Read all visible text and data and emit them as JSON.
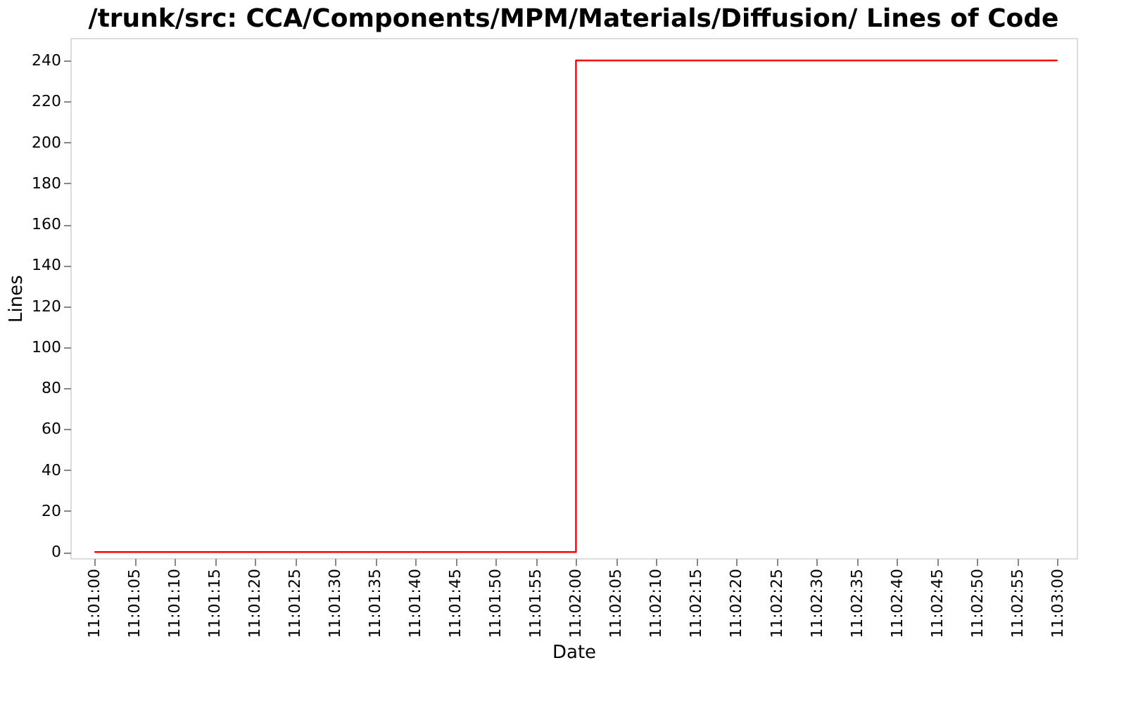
{
  "chart_data": {
    "type": "step",
    "title": "/trunk/src: CCA/Components/MPM/Materials/Diffusion/ Lines of Code",
    "xlabel": "Date",
    "ylabel": "Lines",
    "x": [
      11.016667,
      11.033333,
      11.05
    ],
    "series": [
      {
        "color": "#ff0000",
        "values": [
          0,
          240,
          240
        ]
      }
    ],
    "xlim": [
      11.015833,
      11.050667
    ],
    "ylim": [
      -3,
      251
    ],
    "xticks": [
      {
        "value": 11.016667,
        "label": "11:01:00"
      },
      {
        "value": 11.018056,
        "label": "11:01:05"
      },
      {
        "value": 11.019444,
        "label": "11:01:10"
      },
      {
        "value": 11.020833,
        "label": "11:01:15"
      },
      {
        "value": 11.022222,
        "label": "11:01:20"
      },
      {
        "value": 11.023611,
        "label": "11:01:25"
      },
      {
        "value": 11.025,
        "label": "11:01:30"
      },
      {
        "value": 11.026389,
        "label": "11:01:35"
      },
      {
        "value": 11.027778,
        "label": "11:01:40"
      },
      {
        "value": 11.029167,
        "label": "11:01:45"
      },
      {
        "value": 11.030556,
        "label": "11:01:50"
      },
      {
        "value": 11.031944,
        "label": "11:01:55"
      },
      {
        "value": 11.033333,
        "label": "11:02:00"
      },
      {
        "value": 11.034722,
        "label": "11:02:05"
      },
      {
        "value": 11.036111,
        "label": "11:02:10"
      },
      {
        "value": 11.0375,
        "label": "11:02:15"
      },
      {
        "value": 11.038889,
        "label": "11:02:20"
      },
      {
        "value": 11.040278,
        "label": "11:02:25"
      },
      {
        "value": 11.041667,
        "label": "11:02:30"
      },
      {
        "value": 11.043056,
        "label": "11:02:35"
      },
      {
        "value": 11.044444,
        "label": "11:02:40"
      },
      {
        "value": 11.045833,
        "label": "11:02:45"
      },
      {
        "value": 11.047222,
        "label": "11:02:50"
      },
      {
        "value": 11.048611,
        "label": "11:02:55"
      },
      {
        "value": 11.05,
        "label": "11:03:00"
      }
    ],
    "yticks": [
      0,
      20,
      40,
      60,
      80,
      100,
      120,
      140,
      160,
      180,
      200,
      220,
      240
    ],
    "grid": false,
    "marker": "none",
    "line_style": "solid"
  }
}
